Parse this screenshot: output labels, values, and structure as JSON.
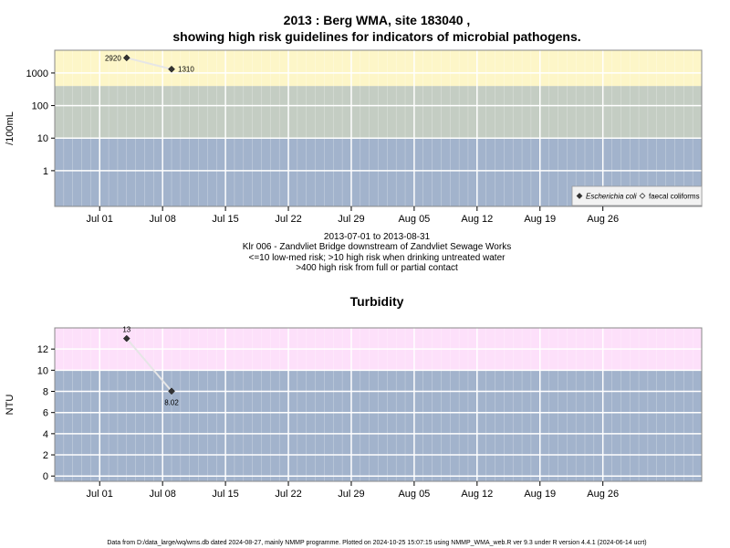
{
  "chart_data": [
    {
      "type": "scatter",
      "title_line1": "2013 : Berg WMA, site 183040 ,",
      "title_line2": "showing high risk guidelines for indicators of microbial pathogens.",
      "ylabel": "/100mL",
      "yscale": "log",
      "ylim": [
        0.08,
        5000
      ],
      "y_ticks": [
        1,
        10,
        100,
        1000
      ],
      "y_tick_labels": [
        "1",
        "10",
        "100",
        "1000"
      ],
      "x_range": [
        "2013-06-26",
        "2013-09-06"
      ],
      "x_ticks": [
        "2013-07-01",
        "2013-07-08",
        "2013-07-15",
        "2013-07-22",
        "2013-07-29",
        "2013-08-05",
        "2013-08-12",
        "2013-08-19",
        "2013-08-26"
      ],
      "x_tick_labels": [
        "Jul 01",
        "Jul 08",
        "Jul 15",
        "Jul 22",
        "Jul 29",
        "Aug 05",
        "Aug 12",
        "Aug 19",
        "Aug 26"
      ],
      "bands": [
        {
          "from": 0.08,
          "to": 10,
          "color": "#a2b3cc"
        },
        {
          "from": 10,
          "to": 400,
          "color": "#c4cdc3"
        },
        {
          "from": 400,
          "to": 5000,
          "color": "#fdf6c8"
        }
      ],
      "grid": true,
      "legend_position": "bottom-right",
      "series": [
        {
          "name": "Escherichia coli",
          "marker": "filled-diamond",
          "x": [
            "2013-07-04",
            "2013-07-09"
          ],
          "y": [
            2920,
            1310
          ],
          "labels": [
            "2920",
            "1310"
          ]
        },
        {
          "name": "faecal coliforms",
          "marker": "open-diamond",
          "x": [],
          "y": [],
          "labels": []
        }
      ],
      "caption": [
        "2013-07-01 to 2013-08-31",
        "Klr 006 - Zandvliet Bridge downstream of Zandvliet Sewage Works",
        "<=10 low-med risk; >10 high risk when drinking untreated water",
        ">400 high risk from full or partial contact"
      ]
    },
    {
      "type": "scatter",
      "title": "Turbidity",
      "ylabel": "NTU",
      "yscale": "linear",
      "ylim": [
        -0.5,
        14.0
      ],
      "y_ticks": [
        0,
        2,
        4,
        6,
        8,
        10,
        12
      ],
      "y_tick_labels": [
        "0",
        "2",
        "4",
        "6",
        "8",
        "10",
        "12"
      ],
      "x_range": [
        "2013-06-26",
        "2013-09-06"
      ],
      "x_ticks": [
        "2013-07-01",
        "2013-07-08",
        "2013-07-15",
        "2013-07-22",
        "2013-07-29",
        "2013-08-05",
        "2013-08-12",
        "2013-08-19",
        "2013-08-26"
      ],
      "x_tick_labels": [
        "Jul 01",
        "Jul 08",
        "Jul 15",
        "Jul 22",
        "Jul 29",
        "Aug 05",
        "Aug 12",
        "Aug 19",
        "Aug 26"
      ],
      "bands": [
        {
          "from": -0.5,
          "to": 10,
          "color": "#a2b3cc"
        },
        {
          "from": 10,
          "to": 14.0,
          "color": "#fde0fa"
        }
      ],
      "grid": true,
      "series": [
        {
          "marker": "filled-diamond",
          "x": [
            "2013-07-04",
            "2013-07-09"
          ],
          "y": [
            13,
            8.02
          ],
          "labels": [
            "13",
            "8.02"
          ]
        }
      ]
    }
  ],
  "footer": "Data from D:/data_large/wq/wms.db dated 2024-08-27, mainly NMMP programme. Plotted on 2024-10-25 15:07:15 using NMMP_WMA_web.R ver 9.3 under R version 4.4.1 (2024-06-14 ucrt)"
}
